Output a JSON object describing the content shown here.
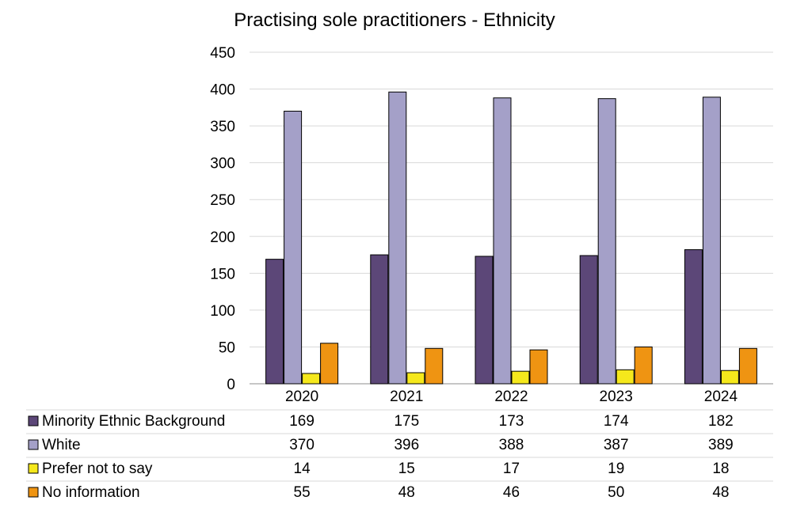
{
  "chart_data": {
    "type": "bar",
    "title": "Practising sole practitioners - Ethnicity",
    "categories": [
      "2020",
      "2021",
      "2022",
      "2023",
      "2024"
    ],
    "ylim": [
      0,
      450
    ],
    "yticks": [
      "0",
      "50",
      "100",
      "150",
      "200",
      "250",
      "300",
      "350",
      "400",
      "450"
    ],
    "grid": true,
    "legend": "data table below chart",
    "series": [
      {
        "name": "Minority Ethnic Background",
        "color": "#5c4778",
        "values": [
          169,
          175,
          173,
          174,
          182
        ]
      },
      {
        "name": "White",
        "color": "#a4a0c8",
        "values": [
          370,
          396,
          388,
          387,
          389
        ]
      },
      {
        "name": "Prefer not to say",
        "color": "#f5e81c",
        "values": [
          14,
          15,
          17,
          19,
          18
        ]
      },
      {
        "name": "No information",
        "color": "#ef9412",
        "values": [
          55,
          48,
          46,
          50,
          48
        ]
      }
    ]
  }
}
